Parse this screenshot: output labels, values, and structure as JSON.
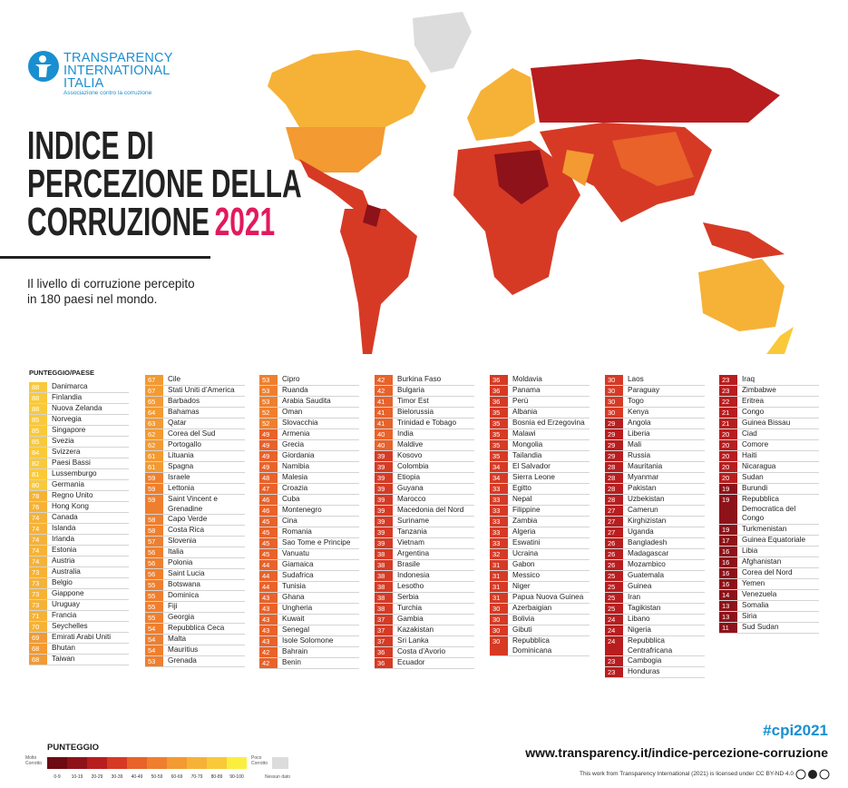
{
  "logo": {
    "lines": [
      "TRANSPARENCY",
      "INTERNATIONAL",
      "ITALIA"
    ],
    "tagline": "Associazione contro la corruzione"
  },
  "header": {
    "title_lines": [
      "INDICE DI",
      "PERCEZIONE DELLA",
      "CORRUZIONE"
    ],
    "year": "2021",
    "subtitle_lines": [
      "Il livello di corruzione percepito",
      "in 180 paesi nel mondo."
    ]
  },
  "table": {
    "heading": "PUNTEGGIO/PAESE",
    "columns": [
      [
        {
          "score": 88,
          "country": "Danimarca"
        },
        {
          "score": 88,
          "country": "Finlandia"
        },
        {
          "score": 88,
          "country": "Nuova Zelanda"
        },
        {
          "score": 85,
          "country": "Norvegia"
        },
        {
          "score": 85,
          "country": "Singapore"
        },
        {
          "score": 85,
          "country": "Svezia"
        },
        {
          "score": 84,
          "country": "Svizzera"
        },
        {
          "score": 82,
          "country": "Paesi Bassi"
        },
        {
          "score": 81,
          "country": "Lussemburgo"
        },
        {
          "score": 80,
          "country": "Germania"
        },
        {
          "score": 78,
          "country": "Regno Unito"
        },
        {
          "score": 76,
          "country": "Hong Kong"
        },
        {
          "score": 74,
          "country": "Canada"
        },
        {
          "score": 74,
          "country": "Islanda"
        },
        {
          "score": 74,
          "country": "Irlanda"
        },
        {
          "score": 74,
          "country": "Estonia"
        },
        {
          "score": 74,
          "country": "Austria"
        },
        {
          "score": 73,
          "country": "Australia"
        },
        {
          "score": 73,
          "country": "Belgio"
        },
        {
          "score": 73,
          "country": "Giappone"
        },
        {
          "score": 73,
          "country": "Uruguay"
        },
        {
          "score": 71,
          "country": "Francia"
        },
        {
          "score": 70,
          "country": "Seychelles"
        },
        {
          "score": 69,
          "country": "Emirati Arabi Uniti"
        },
        {
          "score": 68,
          "country": "Bhutan"
        },
        {
          "score": 68,
          "country": "Taiwan"
        }
      ],
      [
        {
          "score": 67,
          "country": "Cile"
        },
        {
          "score": 67,
          "country": "Stati Uniti d’America"
        },
        {
          "score": 65,
          "country": "Barbados"
        },
        {
          "score": 64,
          "country": "Bahamas"
        },
        {
          "score": 63,
          "country": "Qatar"
        },
        {
          "score": 62,
          "country": "Corea del Sud"
        },
        {
          "score": 62,
          "country": "Portogallo"
        },
        {
          "score": 61,
          "country": "Lituania"
        },
        {
          "score": 61,
          "country": "Spagna"
        },
        {
          "score": 59,
          "country": "Israele"
        },
        {
          "score": 59,
          "country": "Lettonia"
        },
        {
          "score": 59,
          "country": "Saint Vincent e Grenadine"
        },
        {
          "score": 58,
          "country": "Capo Verde"
        },
        {
          "score": 58,
          "country": "Costa Rica"
        },
        {
          "score": 57,
          "country": "Slovenia"
        },
        {
          "score": 56,
          "country": "Italia"
        },
        {
          "score": 56,
          "country": "Polonia"
        },
        {
          "score": 56,
          "country": "Saint Lucia"
        },
        {
          "score": 55,
          "country": "Botswana"
        },
        {
          "score": 55,
          "country": "Dominica"
        },
        {
          "score": 55,
          "country": "Fiji"
        },
        {
          "score": 55,
          "country": "Georgia"
        },
        {
          "score": 54,
          "country": "Repubblica Ceca"
        },
        {
          "score": 54,
          "country": "Malta"
        },
        {
          "score": 54,
          "country": "Mauritius"
        },
        {
          "score": 53,
          "country": "Grenada"
        }
      ],
      [
        {
          "score": 53,
          "country": "Cipro"
        },
        {
          "score": 53,
          "country": "Ruanda"
        },
        {
          "score": 53,
          "country": "Arabia Saudita"
        },
        {
          "score": 52,
          "country": "Oman"
        },
        {
          "score": 52,
          "country": "Slovacchia"
        },
        {
          "score": 49,
          "country": "Armenia"
        },
        {
          "score": 49,
          "country": "Grecia"
        },
        {
          "score": 49,
          "country": "Giordania"
        },
        {
          "score": 49,
          "country": "Namibia"
        },
        {
          "score": 48,
          "country": "Malesia"
        },
        {
          "score": 47,
          "country": "Croazia"
        },
        {
          "score": 46,
          "country": "Cuba"
        },
        {
          "score": 46,
          "country": "Montenegro"
        },
        {
          "score": 45,
          "country": "Cina"
        },
        {
          "score": 45,
          "country": "Romania"
        },
        {
          "score": 45,
          "country": "Sao Tome e Principe"
        },
        {
          "score": 45,
          "country": "Vanuatu"
        },
        {
          "score": 44,
          "country": "Giamaica"
        },
        {
          "score": 44,
          "country": "Sudafrica"
        },
        {
          "score": 44,
          "country": "Tunisia"
        },
        {
          "score": 43,
          "country": "Ghana"
        },
        {
          "score": 43,
          "country": "Ungheria"
        },
        {
          "score": 43,
          "country": "Kuwait"
        },
        {
          "score": 43,
          "country": "Senegal"
        },
        {
          "score": 43,
          "country": "Isole Solomone"
        },
        {
          "score": 42,
          "country": "Bahrain"
        },
        {
          "score": 42,
          "country": "Benin"
        }
      ],
      [
        {
          "score": 42,
          "country": "Burkina Faso"
        },
        {
          "score": 42,
          "country": "Bulgaria"
        },
        {
          "score": 41,
          "country": "Timor Est"
        },
        {
          "score": 41,
          "country": "Bielorussia"
        },
        {
          "score": 41,
          "country": "Trinidad e Tobago"
        },
        {
          "score": 40,
          "country": "India"
        },
        {
          "score": 40,
          "country": "Maldive"
        },
        {
          "score": 39,
          "country": "Kosovo"
        },
        {
          "score": 39,
          "country": "Colombia"
        },
        {
          "score": 39,
          "country": "Etiopia"
        },
        {
          "score": 39,
          "country": "Guyana"
        },
        {
          "score": 39,
          "country": "Marocco"
        },
        {
          "score": 39,
          "country": "Macedonia del Nord"
        },
        {
          "score": 39,
          "country": "Suriname"
        },
        {
          "score": 39,
          "country": "Tanzania"
        },
        {
          "score": 39,
          "country": "Vietnam"
        },
        {
          "score": 38,
          "country": "Argentina"
        },
        {
          "score": 38,
          "country": "Brasile"
        },
        {
          "score": 38,
          "country": "Indonesia"
        },
        {
          "score": 38,
          "country": "Lesotho"
        },
        {
          "score": 38,
          "country": "Serbia"
        },
        {
          "score": 38,
          "country": "Turchia"
        },
        {
          "score": 37,
          "country": "Gambia"
        },
        {
          "score": 37,
          "country": "Kazakistan"
        },
        {
          "score": 37,
          "country": "Sri Lanka"
        },
        {
          "score": 36,
          "country": "Costa d’Avorio"
        },
        {
          "score": 36,
          "country": "Ecuador"
        }
      ],
      [
        {
          "score": 36,
          "country": "Moldavia"
        },
        {
          "score": 36,
          "country": "Panama"
        },
        {
          "score": 36,
          "country": "Perù"
        },
        {
          "score": 35,
          "country": "Albania"
        },
        {
          "score": 35,
          "country": "Bosnia ed Erzegovina"
        },
        {
          "score": 35,
          "country": "Malawi"
        },
        {
          "score": 35,
          "country": "Mongolia"
        },
        {
          "score": 35,
          "country": "Tailandia"
        },
        {
          "score": 34,
          "country": "El Salvador"
        },
        {
          "score": 34,
          "country": "Sierra Leone"
        },
        {
          "score": 33,
          "country": "Egitto"
        },
        {
          "score": 33,
          "country": "Nepal"
        },
        {
          "score": 33,
          "country": "Filippine"
        },
        {
          "score": 33,
          "country": "Zambia"
        },
        {
          "score": 33,
          "country": "Algeria"
        },
        {
          "score": 33,
          "country": "Eswatini"
        },
        {
          "score": 32,
          "country": "Ucraina"
        },
        {
          "score": 31,
          "country": "Gabon"
        },
        {
          "score": 31,
          "country": "Messico"
        },
        {
          "score": 31,
          "country": "Niger"
        },
        {
          "score": 31,
          "country": "Papua Nuova Guinea"
        },
        {
          "score": 30,
          "country": "Azerbaigian"
        },
        {
          "score": 30,
          "country": "Bolivia"
        },
        {
          "score": 30,
          "country": "Gibuti"
        },
        {
          "score": 30,
          "country": "Repubblica Dominicana"
        }
      ],
      [
        {
          "score": 30,
          "country": "Laos"
        },
        {
          "score": 30,
          "country": "Paraguay"
        },
        {
          "score": 30,
          "country": "Togo"
        },
        {
          "score": 30,
          "country": "Kenya"
        },
        {
          "score": 29,
          "country": "Angola"
        },
        {
          "score": 29,
          "country": "Liberia"
        },
        {
          "score": 29,
          "country": "Mali"
        },
        {
          "score": 29,
          "country": "Russia"
        },
        {
          "score": 28,
          "country": "Mauritania"
        },
        {
          "score": 28,
          "country": "Myanmar"
        },
        {
          "score": 28,
          "country": "Pakistan"
        },
        {
          "score": 28,
          "country": "Uzbekistan"
        },
        {
          "score": 27,
          "country": "Camerun"
        },
        {
          "score": 27,
          "country": "Kirghizistan"
        },
        {
          "score": 27,
          "country": "Uganda"
        },
        {
          "score": 26,
          "country": "Bangladesh"
        },
        {
          "score": 26,
          "country": "Madagascar"
        },
        {
          "score": 26,
          "country": "Mozambico"
        },
        {
          "score": 25,
          "country": "Guatemala"
        },
        {
          "score": 25,
          "country": "Guinea"
        },
        {
          "score": 25,
          "country": "Iran"
        },
        {
          "score": 25,
          "country": "Tagikistan"
        },
        {
          "score": 24,
          "country": "Libano"
        },
        {
          "score": 24,
          "country": "Nigeria"
        },
        {
          "score": 24,
          "country": "Repubblica Centrafricana"
        },
        {
          "score": 23,
          "country": "Cambogia"
        },
        {
          "score": 23,
          "country": "Honduras"
        }
      ],
      [
        {
          "score": 23,
          "country": "Iraq"
        },
        {
          "score": 23,
          "country": "Zimbabwe"
        },
        {
          "score": 22,
          "country": "Eritrea"
        },
        {
          "score": 21,
          "country": "Congo"
        },
        {
          "score": 21,
          "country": "Guinea Bissau"
        },
        {
          "score": 20,
          "country": "Ciad"
        },
        {
          "score": 20,
          "country": "Comore"
        },
        {
          "score": 20,
          "country": "Haiti"
        },
        {
          "score": 20,
          "country": "Nicaragua"
        },
        {
          "score": 20,
          "country": "Sudan"
        },
        {
          "score": 19,
          "country": "Burundi"
        },
        {
          "score": 19,
          "country": "Repubblica Democratica del Congo"
        },
        {
          "score": 19,
          "country": "Turkmenistan"
        },
        {
          "score": 17,
          "country": "Guinea Equatoriale"
        },
        {
          "score": 16,
          "country": "Libia"
        },
        {
          "score": 16,
          "country": "Afghanistan"
        },
        {
          "score": 16,
          "country": "Corea del Nord"
        },
        {
          "score": 16,
          "country": "Yemen"
        },
        {
          "score": 14,
          "country": "Venezuela"
        },
        {
          "score": 13,
          "country": "Somalia"
        },
        {
          "score": 13,
          "country": "Siria"
        },
        {
          "score": 11,
          "country": "Sud Sudan"
        }
      ]
    ]
  },
  "legend": {
    "title": "PUNTEGGIO",
    "low": "Molto Corrotto",
    "high": "Poco Corrotto",
    "no_data": "Nessun dato",
    "no_data_color": "#dcdcdc",
    "bins": [
      {
        "label": "0-9",
        "color": "#6e0a12"
      },
      {
        "label": "10-19",
        "color": "#8e1219"
      },
      {
        "label": "20-29",
        "color": "#b81d1f"
      },
      {
        "label": "30-39",
        "color": "#d63a25"
      },
      {
        "label": "40-49",
        "color": "#e8622a"
      },
      {
        "label": "50-59",
        "color": "#ef7f2e"
      },
      {
        "label": "60-69",
        "color": "#f39a32"
      },
      {
        "label": "70-79",
        "color": "#f6b236"
      },
      {
        "label": "80-89",
        "color": "#f9c93a"
      },
      {
        "label": "90-100",
        "color": "#fbee3f"
      }
    ]
  },
  "footer": {
    "hashtag": "#cpi2021",
    "url": "www.transparency.it/indice-percezione-corruzione",
    "license": "This work from Transparency International (2021) is licensed under CC BY-ND 4.0"
  }
}
